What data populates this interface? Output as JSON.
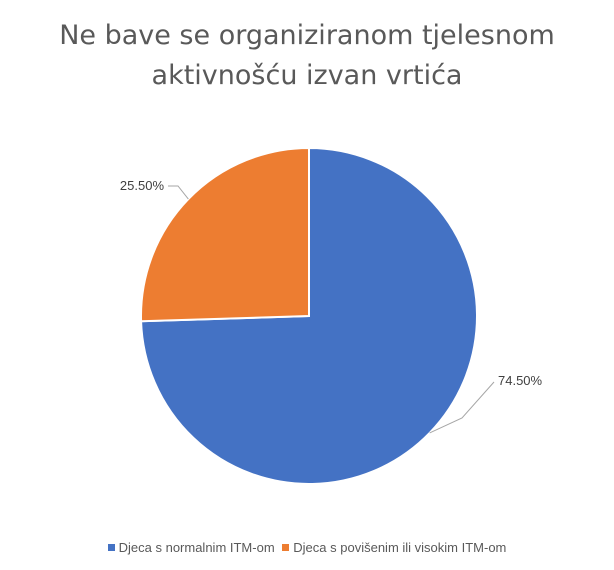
{
  "chart_data": {
    "type": "pie",
    "title_lines": [
      "Ne bave se organiziranom tjelesnom",
      "aktivnošću izvan vrtića"
    ],
    "slices": [
      {
        "name": "Djeca s normalnim ITM-om",
        "value": 74.5,
        "label": "74.50%",
        "color": "#4472C4"
      },
      {
        "name": "Djeca s povišenim ili visokim ITM-om",
        "value": 25.5,
        "label": "25.50%",
        "color": "#ED7D31"
      }
    ],
    "legend_position": "bottom",
    "start_angle": "12 o'clock, clockwise"
  }
}
